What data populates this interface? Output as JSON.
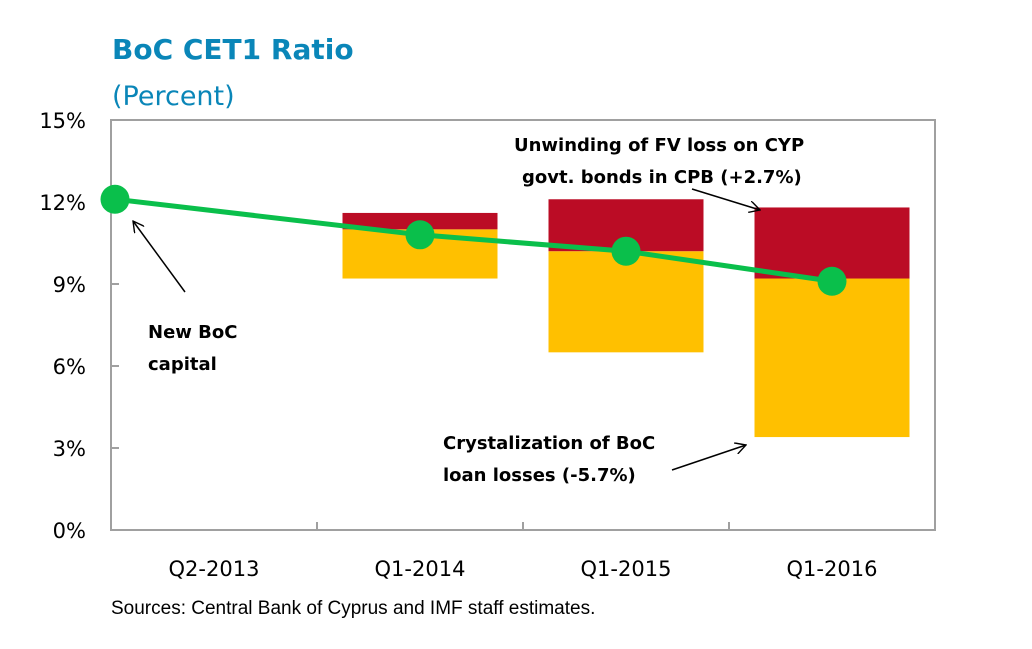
{
  "chart_data": {
    "type": "bar",
    "title": "BoC CET1 Ratio",
    "subtitle": "(Percent)",
    "xlabel": "",
    "ylabel": "",
    "ylim": [
      0,
      15
    ],
    "yticks": [
      0,
      3,
      6,
      9,
      12,
      15
    ],
    "ytick_labels": [
      "0%",
      "3%",
      "6%",
      "9%",
      "12%",
      "15%"
    ],
    "categories": [
      "Q2-2013",
      "Q1-2014",
      "Q1-2015",
      "Q1-2016"
    ],
    "grid": false,
    "floating_bars": [
      {
        "category": "Q1-2014",
        "loan_loss_range": [
          9.2,
          11.0
        ],
        "fv_unwind_range": [
          11.0,
          11.6
        ]
      },
      {
        "category": "Q1-2015",
        "loan_loss_range": [
          6.5,
          10.2
        ],
        "fv_unwind_range": [
          10.2,
          12.1
        ]
      },
      {
        "category": "Q1-2016",
        "loan_loss_range": [
          3.4,
          9.2
        ],
        "fv_unwind_range": [
          9.2,
          11.8
        ]
      }
    ],
    "series": [
      {
        "name": "CET1 ratio",
        "type": "line",
        "values": [
          12.1,
          10.8,
          10.2,
          9.1
        ]
      }
    ],
    "colors": {
      "loan_loss": "#ffc000",
      "fv_unwind": "#bb0c25",
      "line": "#0abf4b",
      "title": "#0a86b8",
      "axis": "#a0a0a0"
    },
    "annotations": [
      {
        "id": "new-capital",
        "lines": [
          "New BoC",
          "capital"
        ],
        "points_to": "Q2-2013"
      },
      {
        "id": "fv-unwind",
        "lines": [
          "Unwinding of FV loss on CYP",
          "govt. bonds in CPB  (+2.7%)"
        ],
        "points_to": "Q1-2016 red segment"
      },
      {
        "id": "loan-loss",
        "lines": [
          "Crystalization of BoC",
          "loan losses (-5.7%)"
        ],
        "points_to": "Q1-2016 yellow segment"
      }
    ],
    "source": "Sources: Central Bank of Cyprus and IMF staff estimates."
  }
}
